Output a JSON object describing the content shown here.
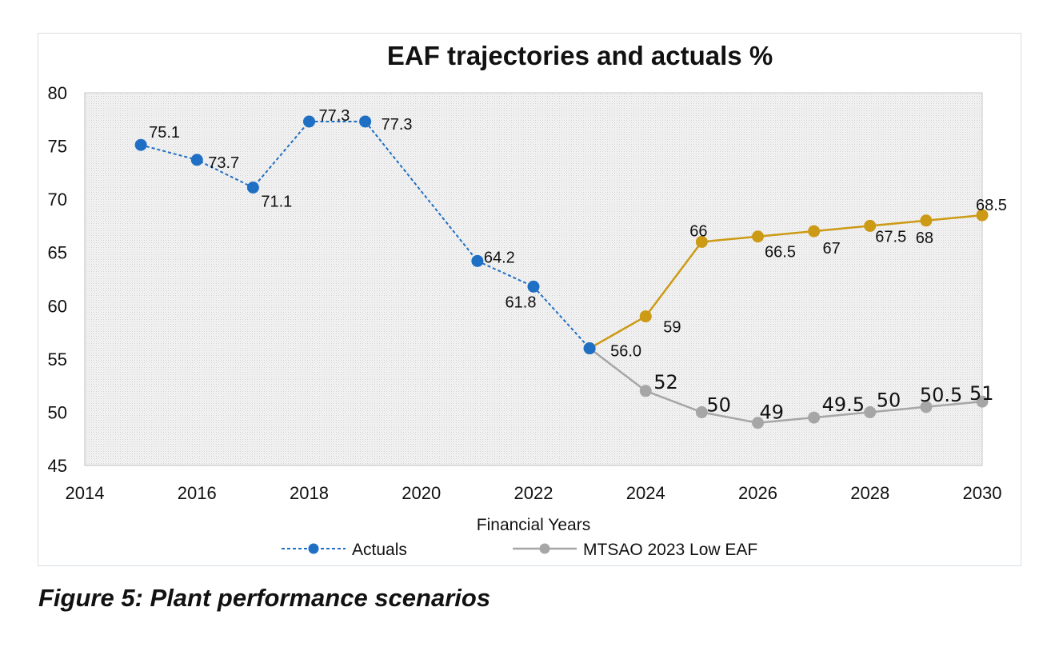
{
  "chart_data": {
    "type": "line",
    "title": "EAF trajectories and actuals %",
    "xlabel": "Financial Years",
    "ylabel": "",
    "xlim": [
      2014,
      2030
    ],
    "ylim": [
      45,
      80
    ],
    "x_ticks": [
      "2014",
      "2016",
      "2018",
      "2020",
      "2022",
      "2024",
      "2026",
      "2028",
      "2030"
    ],
    "y_ticks": [
      "45",
      "50",
      "55",
      "60",
      "65",
      "70",
      "75",
      "80"
    ],
    "grid": false,
    "legend_position": "bottom",
    "colors": {
      "actuals": "#1f6fc5",
      "orange": "#cc9a14",
      "gray": "#a6a6a6"
    },
    "series": [
      {
        "key": "actuals",
        "name": "Actuals",
        "style": "dashed",
        "color": "#1f6fc5",
        "points": [
          {
            "x": 2015,
            "y": 75.1,
            "label": "75.1"
          },
          {
            "x": 2016,
            "y": 73.7,
            "label": "73.7"
          },
          {
            "x": 2017,
            "y": 71.1,
            "label": "71.1"
          },
          {
            "x": 2018,
            "y": 77.3,
            "label": "77.3"
          },
          {
            "x": 2019,
            "y": 77.3,
            "label": "77.3"
          },
          {
            "x": 2021,
            "y": 64.2,
            "label": "64.2"
          },
          {
            "x": 2022,
            "y": 61.8,
            "label": "61.8"
          },
          {
            "x": 2023,
            "y": 56.0,
            "label": "56.0"
          }
        ]
      },
      {
        "key": "orange",
        "style": "solid",
        "color": "#cc9a14",
        "points": [
          {
            "x": 2023,
            "y": 56,
            "label": ""
          },
          {
            "x": 2024,
            "y": 59,
            "label": "59"
          },
          {
            "x": 2025,
            "y": 66,
            "label": "66"
          },
          {
            "x": 2026,
            "y": 66.5,
            "label": "66.5"
          },
          {
            "x": 2027,
            "y": 67,
            "label": "67"
          },
          {
            "x": 2028,
            "y": 67.5,
            "label": "67.5"
          },
          {
            "x": 2029,
            "y": 68,
            "label": "68"
          },
          {
            "x": 2030,
            "y": 68.5,
            "label": "68.5"
          }
        ]
      },
      {
        "key": "gray",
        "name": "MTSAO 2023 Low EAF",
        "style": "solid",
        "color": "#a6a6a6",
        "points": [
          {
            "x": 2023,
            "y": 56,
            "label": ""
          },
          {
            "x": 2024,
            "y": 52,
            "label": "52"
          },
          {
            "x": 2025,
            "y": 50,
            "label": "50"
          },
          {
            "x": 2026,
            "y": 49,
            "label": "49"
          },
          {
            "x": 2027,
            "y": 49.5,
            "label": "49.5"
          },
          {
            "x": 2028,
            "y": 50,
            "label": "50"
          },
          {
            "x": 2029,
            "y": 50.5,
            "label": "50.5"
          },
          {
            "x": 2030,
            "y": 51,
            "label": "51"
          }
        ]
      }
    ],
    "legend": [
      {
        "series": "actuals",
        "label": "Actuals"
      },
      {
        "series": "gray",
        "label": "MTSAO 2023 Low EAF"
      }
    ]
  },
  "caption": "Figure 5: Plant performance scenarios"
}
